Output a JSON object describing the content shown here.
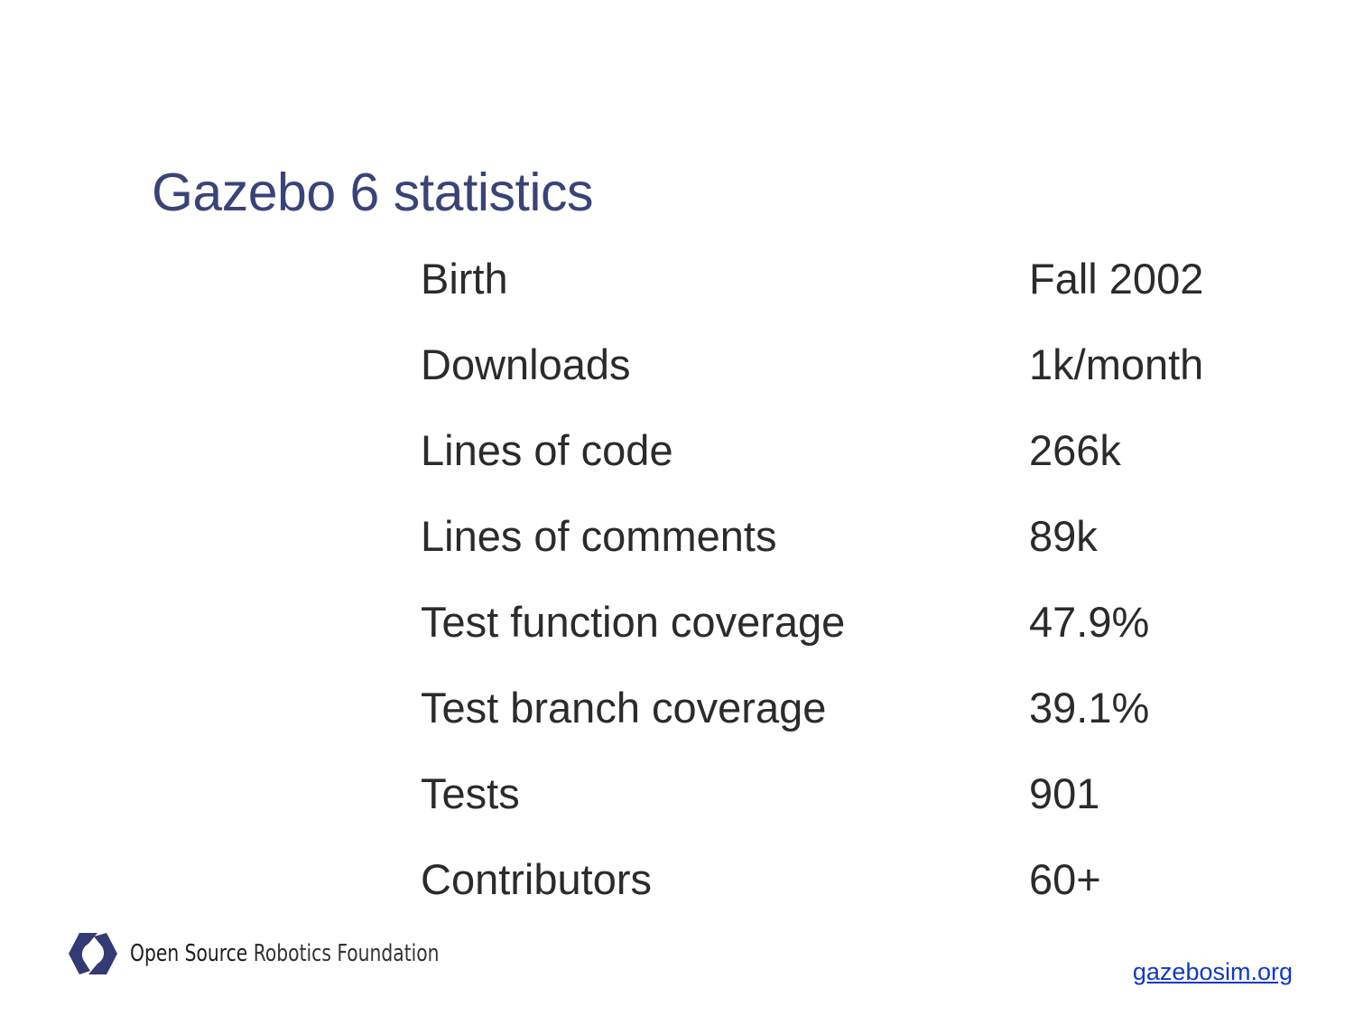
{
  "slide": {
    "title": "Gazebo 6 statistics"
  },
  "stats": [
    {
      "label": "Birth",
      "value": "Fall 2002"
    },
    {
      "label": "Downloads",
      "value": "1k/month"
    },
    {
      "label": "Lines of code",
      "value": "266k"
    },
    {
      "label": "Lines of comments",
      "value": "89k"
    },
    {
      "label": "Test function coverage",
      "value": "47.9%"
    },
    {
      "label": "Test branch coverage",
      "value": "39.1%"
    },
    {
      "label": "Tests",
      "value": "901"
    },
    {
      "label": "Contributors",
      "value": "60+"
    }
  ],
  "footer": {
    "logo_icon": "osrf-logo-icon",
    "logo_text_bold": "Open Source",
    "logo_text_light": "Robotics Foundation",
    "link": "gazebosim.org"
  },
  "colors": {
    "title": "#3a4379",
    "text": "#2b2b2b",
    "link": "#1238c9",
    "logo": "#343a73"
  }
}
